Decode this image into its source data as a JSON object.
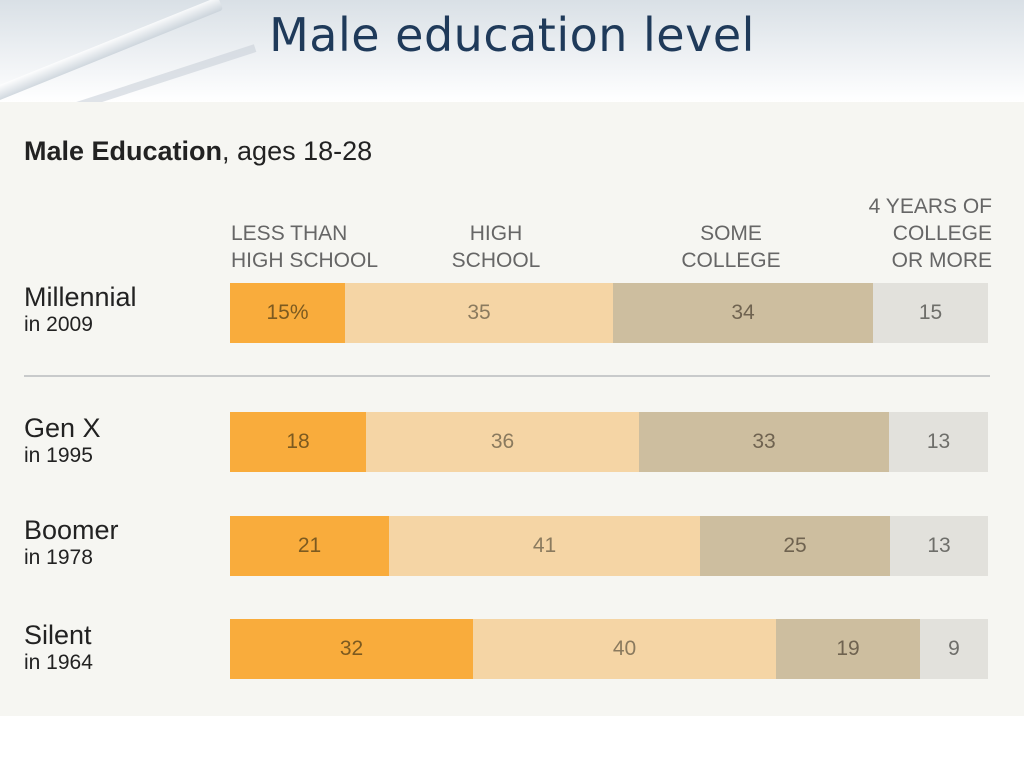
{
  "slide": {
    "title": "Male education level"
  },
  "chart_data": {
    "type": "bar",
    "orientation": "horizontal-stacked",
    "title_bold": "Male Education",
    "title_rest": ", ages 18-28",
    "categories": [
      "LESS THAN HIGH SCHOOL",
      "HIGH SCHOOL",
      "SOME COLLEGE",
      "4 YEARS OF COLLEGE OR MORE"
    ],
    "category_lines": [
      [
        "LESS THAN",
        "HIGH SCHOOL"
      ],
      [
        "HIGH",
        "SCHOOL"
      ],
      [
        "SOME",
        "COLLEGE"
      ],
      [
        "4 YEARS OF",
        "COLLEGE",
        "OR MORE"
      ]
    ],
    "rows": [
      {
        "name": "Millennial",
        "year": "in 2009",
        "values": [
          15,
          35,
          34,
          15
        ],
        "labels": [
          "15%",
          "35",
          "34",
          "15"
        ]
      },
      {
        "name": "Gen X",
        "year": "in 1995",
        "values": [
          18,
          36,
          33,
          13
        ],
        "labels": [
          "18",
          "36",
          "33",
          "13"
        ]
      },
      {
        "name": "Boomer",
        "year": "in 1978",
        "values": [
          21,
          41,
          25,
          13
        ],
        "labels": [
          "21",
          "41",
          "25",
          "13"
        ]
      },
      {
        "name": "Silent",
        "year": "in 1964",
        "values": [
          32,
          40,
          19,
          9
        ],
        "labels": [
          "32",
          "40",
          "19",
          "9"
        ]
      }
    ],
    "unit": "%",
    "colors": [
      "#f9ac3c",
      "#f5d5a5",
      "#cdbe9f",
      "#e2e1dc"
    ]
  }
}
